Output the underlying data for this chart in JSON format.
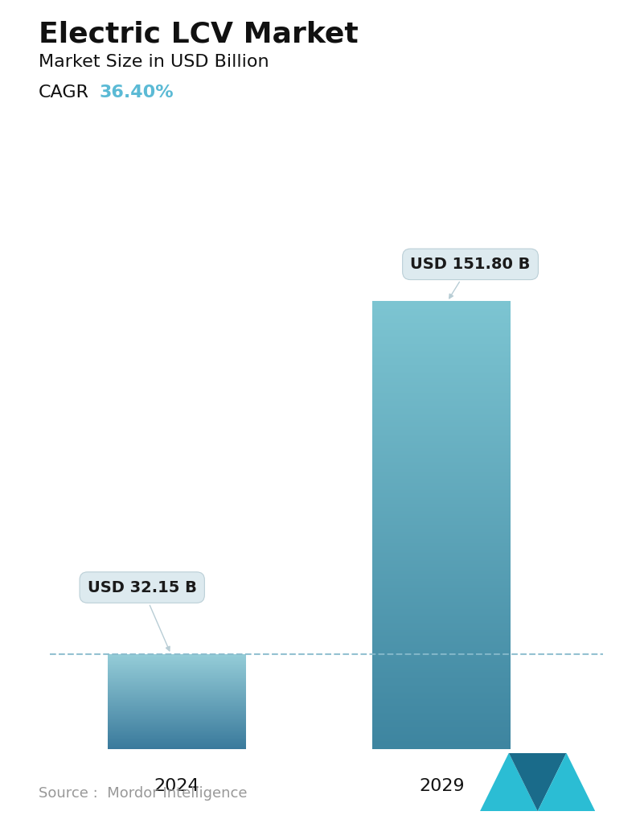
{
  "title": "Electric LCV Market",
  "subtitle": "Market Size in USD Billion",
  "cagr_label": "CAGR",
  "cagr_value": "36.40%",
  "cagr_color": "#5BBAD5",
  "categories": [
    "2024",
    "2029"
  ],
  "values": [
    32.15,
    151.8
  ],
  "value_labels": [
    "USD 32.15 B",
    "USD 151.80 B"
  ],
  "bar1_color_top": "#95CDD8",
  "bar1_color_bottom": "#3A7A9C",
  "bar2_color_top": "#7DC5D2",
  "bar2_color_bottom": "#3E85A0",
  "dashed_line_color": "#88BBCC",
  "callout_bg": "#DCE9EF",
  "callout_edge": "#B8CDD5",
  "source_text": "Source :  Mordor Intelligence",
  "logo_color1": "#2BBDD4",
  "logo_color2": "#1A6B8A",
  "background_color": "#FFFFFF",
  "title_fontsize": 26,
  "subtitle_fontsize": 16,
  "cagr_fontsize": 16,
  "tick_fontsize": 16,
  "callout_fontsize": 14,
  "source_fontsize": 13
}
